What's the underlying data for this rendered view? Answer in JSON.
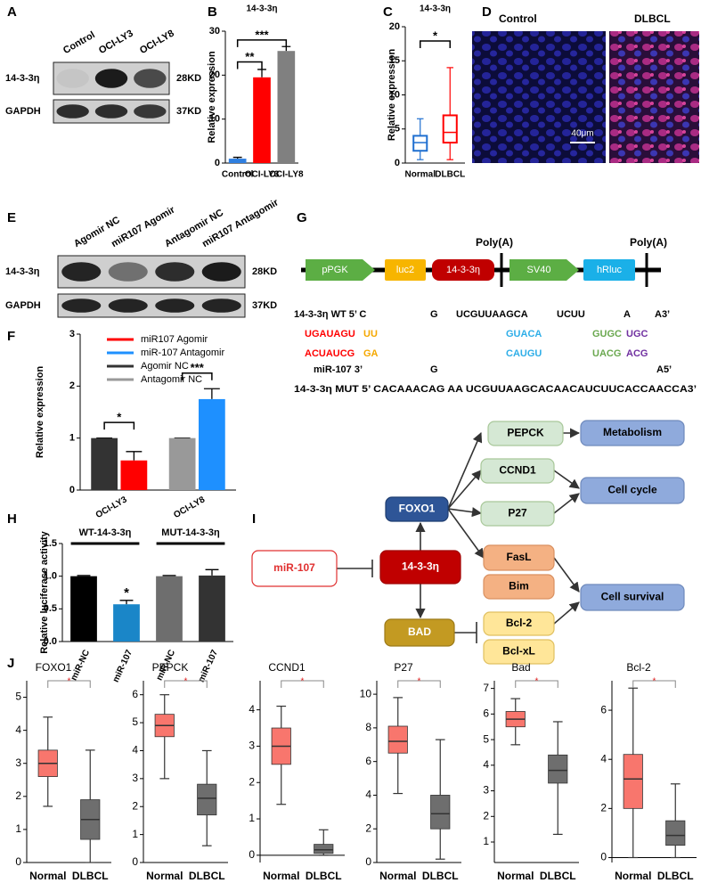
{
  "panel_labels": [
    "A",
    "B",
    "C",
    "D",
    "E",
    "F",
    "G",
    "H",
    "I",
    "J"
  ],
  "blot_a": {
    "lanes": [
      "Control",
      "OCI-LY3",
      "OCI-LY8"
    ],
    "rows": [
      "14-3-3η",
      "GAPDH"
    ],
    "sizes": [
      "28KD",
      "37KD"
    ]
  },
  "images_d": {
    "labels": [
      "Control",
      "DLBCL"
    ],
    "scale": "40μm"
  },
  "blot_e": {
    "lanes": [
      "Agomir NC",
      "miR107 Agomir",
      "Antagomir NC",
      "miR107 Antagomir"
    ],
    "rows": [
      "14-3-3η",
      "GAPDH"
    ],
    "sizes": [
      "28KD",
      "37KD"
    ]
  },
  "construct_g": {
    "elements": [
      {
        "label": "pPGK",
        "color": "#5cae44"
      },
      {
        "label": "luc2",
        "color": "#f7b500"
      },
      {
        "label": "14-3-3η",
        "color": "#c00000"
      },
      {
        "label": "SV40",
        "color": "#5cae44"
      },
      {
        "label": "hRluc",
        "color": "#1ab0e8"
      }
    ],
    "polya": [
      "Poly(A)",
      "Poly(A)"
    ]
  },
  "sequence_g": [
    [
      {
        "text": "14-3-3η WT 5’ C"
      },
      {
        "text": "G"
      },
      {
        "text": "UCGUUAAGCA"
      },
      {
        "text": "UCUU"
      },
      {
        "text": "A"
      },
      {
        "text": "A3’"
      }
    ],
    [
      {
        "text": "UGAUAGU",
        "color": "#ff0000"
      },
      {
        "text": "UU",
        "color": "#f5a800"
      },
      {
        "text": "GUACA",
        "color": "#2eaee8"
      },
      {
        "text": "GUGC",
        "color": "#6aa84f"
      },
      {
        "text": "UGC",
        "color": "#7030a0"
      }
    ],
    [
      {
        "text": "ACUAUCG",
        "color": "#ff0000"
      },
      {
        "text": "GA",
        "color": "#f5a800"
      },
      {
        "text": "CAUGU",
        "color": "#2eaee8"
      },
      {
        "text": "UACG",
        "color": "#6aa84f"
      },
      {
        "text": "ACG",
        "color": "#7030a0"
      }
    ],
    [
      {
        "text": "miR-107 3’"
      },
      {
        "text": "G"
      },
      {
        "text": "A5’"
      }
    ],
    [
      {
        "text": "14-3-3η MUT 5’ CACAAACAG AA UCGUUAAGCACAACAUCUUCACCAACCA3’"
      }
    ]
  ],
  "pathway_i": {
    "nodes": [
      {
        "label": "miR-107"
      },
      {
        "label": "14-3-3η"
      },
      {
        "label": "FOXO1"
      },
      {
        "label": "BAD"
      },
      {
        "label": "PEPCK"
      },
      {
        "label": "CCND1"
      },
      {
        "label": "P27"
      },
      {
        "label": "FasL"
      },
      {
        "label": "Bim"
      },
      {
        "label": "Bcl-2"
      },
      {
        "label": "Bcl-xL"
      },
      {
        "label": "Metabolism"
      },
      {
        "label": "Cell cycle"
      },
      {
        "label": "Cell survival"
      }
    ]
  },
  "chart_data": [
    {
      "type": "bar",
      "title": "14-3-3η",
      "y_label": "Relative expression",
      "categories": [
        "Control",
        "OCI-LY3",
        "OCI-LY8"
      ],
      "values": [
        1,
        19.5,
        25.5
      ],
      "errors": [
        0.3,
        1.8,
        1.0
      ],
      "colors": [
        "#2f7fe0",
        "#ff0000",
        "#808080"
      ],
      "ylim": [
        0,
        30
      ],
      "yticks": [
        0,
        10,
        20,
        30
      ],
      "annotations": [
        "**",
        "***"
      ]
    },
    {
      "type": "box",
      "title": "14-3-3η",
      "y_label": "Relative expression",
      "categories": [
        "Normal",
        "DLBCL"
      ],
      "boxes": [
        {
          "min": 0.5,
          "q1": 1.8,
          "median": 3,
          "q3": 4,
          "max": 6.5
        },
        {
          "min": 0.5,
          "q1": 3,
          "median": 4.5,
          "q3": 7,
          "max": 14
        }
      ],
      "colors": [
        "#1f6fd0",
        "#ff0000"
      ],
      "ylim": [
        0,
        20
      ],
      "yticks": [
        0,
        5,
        10,
        15,
        20
      ],
      "annotations": [
        "*"
      ]
    },
    {
      "type": "grouped_bar",
      "y_label": "Relative expression",
      "categories": [
        "OCI-LY3",
        "OCI-LY8"
      ],
      "series": [
        {
          "name": "miR107 Agomir",
          "color": "#ff0000",
          "values": [
            0.57,
            null
          ],
          "errors": [
            0.17,
            null
          ]
        },
        {
          "name": "miR-107 Antagomir",
          "color": "#1e90ff",
          "values": [
            null,
            1.75
          ],
          "errors": [
            null,
            0.2
          ]
        },
        {
          "name": "Agomir NC",
          "color": "#333333",
          "values": [
            1,
            null
          ],
          "errors": [
            0,
            null
          ]
        },
        {
          "name": "Antagomir NC",
          "color": "#999999",
          "values": [
            null,
            1
          ],
          "errors": [
            null,
            0
          ]
        }
      ],
      "ylim": [
        0,
        3
      ],
      "yticks": [
        0,
        1,
        2,
        3
      ],
      "annotations": [
        "*",
        "***"
      ]
    },
    {
      "type": "bar",
      "y_label": "Relative luciferase activity",
      "groups": [
        "WT-14-3-3η",
        "MUT-14-3-3η"
      ],
      "categories": [
        "miR-NC",
        "miR-107",
        "miR-NC",
        "miR-107"
      ],
      "values": [
        1,
        0.57,
        1,
        1.01
      ],
      "errors": [
        0.01,
        0.06,
        0.01,
        0.09
      ],
      "colors": [
        "#000000",
        "#1a86c8",
        "#6e6e6e",
        "#333333"
      ],
      "ylim": [
        0,
        1.5
      ],
      "yticks": [
        {
          "value": 0,
          "label": "0.0"
        },
        {
          "value": 0.5,
          "label": "0.5"
        },
        {
          "value": 1,
          "label": "1.0"
        },
        {
          "value": 1.5,
          "label": "1.5"
        }
      ],
      "annotations": [
        "*"
      ]
    },
    {
      "type": "box",
      "title": "FOXO1",
      "categories": [
        "Normal",
        "DLBCL"
      ],
      "boxes": [
        {
          "min": 1.7,
          "q1": 2.6,
          "median": 3.0,
          "q3": 3.4,
          "max": 4.4
        },
        {
          "min": 0,
          "q1": 0.7,
          "median": 1.3,
          "q3": 1.9,
          "max": 3.4
        }
      ],
      "colors": [
        "#f8766d",
        "#6e6e6e"
      ],
      "ylim": [
        0,
        5.5
      ],
      "yticks": [
        0,
        1,
        2,
        3,
        4,
        5
      ],
      "annotations": [
        "*"
      ]
    },
    {
      "type": "box",
      "title": "PEPCK",
      "categories": [
        "Normal",
        "DLBCL"
      ],
      "boxes": [
        {
          "min": 3,
          "q1": 4.5,
          "median": 4.9,
          "q3": 5.3,
          "max": 6
        },
        {
          "min": 0.6,
          "q1": 1.7,
          "median": 2.3,
          "q3": 2.8,
          "max": 4
        }
      ],
      "colors": [
        "#f8766d",
        "#6e6e6e"
      ],
      "ylim": [
        0,
        6.5
      ],
      "yticks": [
        0,
        1,
        2,
        3,
        4,
        5,
        6
      ],
      "annotations": [
        "*"
      ]
    },
    {
      "type": "box",
      "title": "CCND1",
      "categories": [
        "Normal",
        "DLBCL"
      ],
      "boxes": [
        {
          "min": 1.4,
          "q1": 2.5,
          "median": 3.0,
          "q3": 3.5,
          "max": 4.1
        },
        {
          "min": 0,
          "q1": 0.05,
          "median": 0.15,
          "q3": 0.3,
          "max": 0.7
        }
      ],
      "colors": [
        "#f8766d",
        "#6e6e6e"
      ],
      "ylim": [
        -0.2,
        4.8
      ],
      "yticks": [
        0,
        1,
        2,
        3,
        4
      ],
      "annotations": [
        "*"
      ]
    },
    {
      "type": "box",
      "title": "P27",
      "categories": [
        "Normal",
        "DLBCL"
      ],
      "boxes": [
        {
          "min": 4.1,
          "q1": 6.5,
          "median": 7.2,
          "q3": 8.1,
          "max": 9.8
        },
        {
          "min": 0.2,
          "q1": 2,
          "median": 2.9,
          "q3": 4,
          "max": 7.3
        }
      ],
      "colors": [
        "#f8766d",
        "#6e6e6e"
      ],
      "ylim": [
        0,
        10.8
      ],
      "yticks": [
        0,
        2,
        4,
        6,
        8,
        10
      ],
      "annotations": [
        "*"
      ]
    },
    {
      "type": "box",
      "title": "Bad",
      "categories": [
        "Normal",
        "DLBCL"
      ],
      "boxes": [
        {
          "min": 4.8,
          "q1": 5.5,
          "median": 5.8,
          "q3": 6.1,
          "max": 6.6
        },
        {
          "min": 1.3,
          "q1": 3.3,
          "median": 3.8,
          "q3": 4.4,
          "max": 5.7
        }
      ],
      "colors": [
        "#f8766d",
        "#6e6e6e"
      ],
      "ylim": [
        0.2,
        7.3
      ],
      "yticks": [
        1,
        2,
        3,
        4,
        5,
        6,
        7
      ],
      "annotations": [
        "*"
      ]
    },
    {
      "type": "box",
      "title": "Bcl-2",
      "categories": [
        "Normal",
        "DLBCL"
      ],
      "boxes": [
        {
          "min": 0,
          "q1": 2,
          "median": 3.2,
          "q3": 4.2,
          "max": 6.9
        },
        {
          "min": 0,
          "q1": 0.5,
          "median": 0.9,
          "q3": 1.5,
          "max": 3
        }
      ],
      "colors": [
        "#f8766d",
        "#6e6e6e"
      ],
      "ylim": [
        -0.2,
        7.2
      ],
      "yticks": [
        0,
        2,
        4,
        6
      ],
      "annotations": [
        "*"
      ]
    }
  ]
}
